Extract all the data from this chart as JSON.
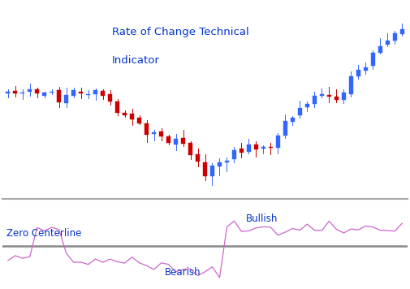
{
  "title_line1": "Rate of Change Technical",
  "title_line2": "Indicator",
  "title_color": "#0033cc",
  "title_fontsize": 9.5,
  "zero_centerline_label": "Zero Centerline",
  "bullish_label": "Bullish",
  "bearish_label": "Bearish",
  "label_color": "#0033cc",
  "label_fontsize": 8.5,
  "roc_color": "#cc66cc",
  "candle_up_color": "#3366ff",
  "candle_down_color": "#cc0000",
  "background_color": "#ffffff",
  "separator_color": "#aaaaaa",
  "zero_line_color": "#888888"
}
